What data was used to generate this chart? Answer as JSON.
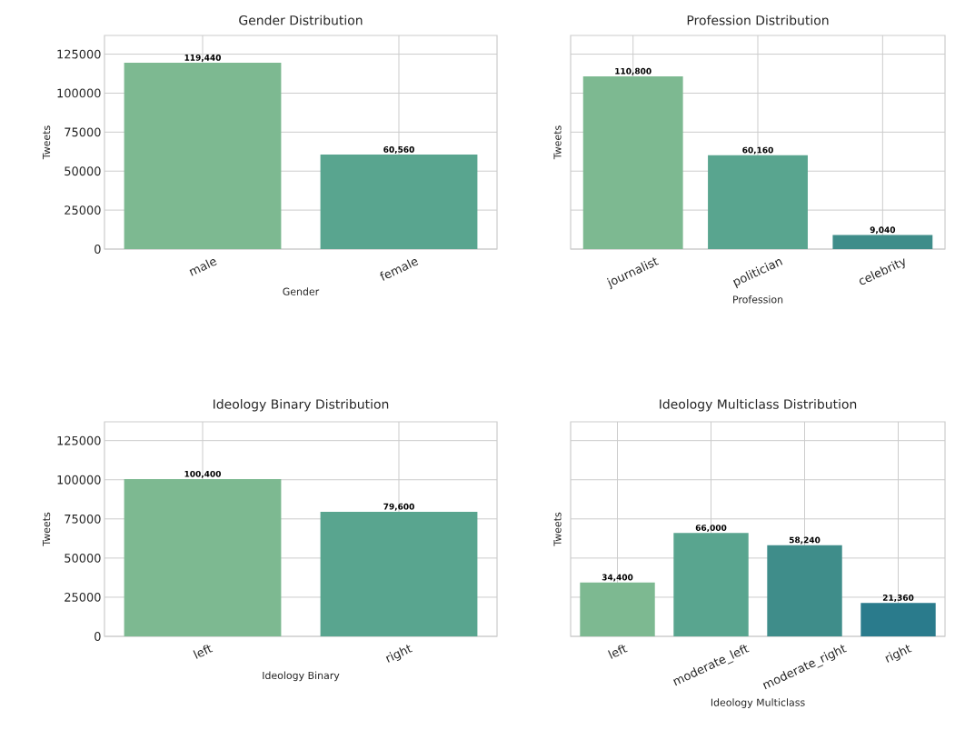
{
  "chart_data": [
    {
      "type": "bar",
      "title": "Gender Distribution",
      "xlabel": "Gender",
      "ylabel": "Tweets",
      "categories": [
        "male",
        "female"
      ],
      "values": [
        119440,
        60560
      ],
      "colors": [
        "#7db991",
        "#59a58f"
      ],
      "value_labels": [
        "119,440",
        "60,560"
      ],
      "ylim": [
        0,
        137000
      ],
      "yticks": [
        0,
        25000,
        50000,
        75000,
        100000,
        125000
      ],
      "grid": true
    },
    {
      "type": "bar",
      "title": "Profession Distribution",
      "xlabel": "Profession",
      "ylabel": "Tweets",
      "categories": [
        "journalist",
        "politician",
        "celebrity"
      ],
      "values": [
        110800,
        60160,
        9040
      ],
      "colors": [
        "#7db991",
        "#59a58f",
        "#3f8d8a"
      ],
      "value_labels": [
        "110,800",
        "60,160",
        "9,040"
      ],
      "ylim": [
        0,
        137000
      ],
      "yticks": [
        0,
        25000,
        50000,
        75000,
        100000,
        125000
      ],
      "grid": true,
      "tick_labels": "x"
    },
    {
      "type": "bar",
      "title": "Ideology Binary Distribution",
      "xlabel": "Ideology Binary",
      "ylabel": "Tweets",
      "categories": [
        "left",
        "right"
      ],
      "values": [
        100400,
        79600
      ],
      "colors": [
        "#7db991",
        "#59a58f"
      ],
      "value_labels": [
        "100,400",
        "79,600"
      ],
      "ylim": [
        0,
        137000
      ],
      "yticks": [
        0,
        25000,
        50000,
        75000,
        100000,
        125000
      ],
      "grid": true
    },
    {
      "type": "bar",
      "title": "Ideology Multiclass Distribution",
      "xlabel": "Ideology Multiclass",
      "ylabel": "Tweets",
      "categories": [
        "left",
        "moderate_left",
        "moderate_right",
        "right"
      ],
      "values": [
        34400,
        66000,
        58240,
        21360
      ],
      "colors": [
        "#7db991",
        "#59a58f",
        "#3f8d8a",
        "#2a7b8c"
      ],
      "value_labels": [
        "34,400",
        "66,000",
        "58,240",
        "21,360"
      ],
      "ylim": [
        0,
        137000
      ],
      "yticks": [
        0,
        25000,
        50000,
        75000,
        100000,
        125000
      ],
      "grid": true,
      "tick_labels": "x"
    }
  ]
}
